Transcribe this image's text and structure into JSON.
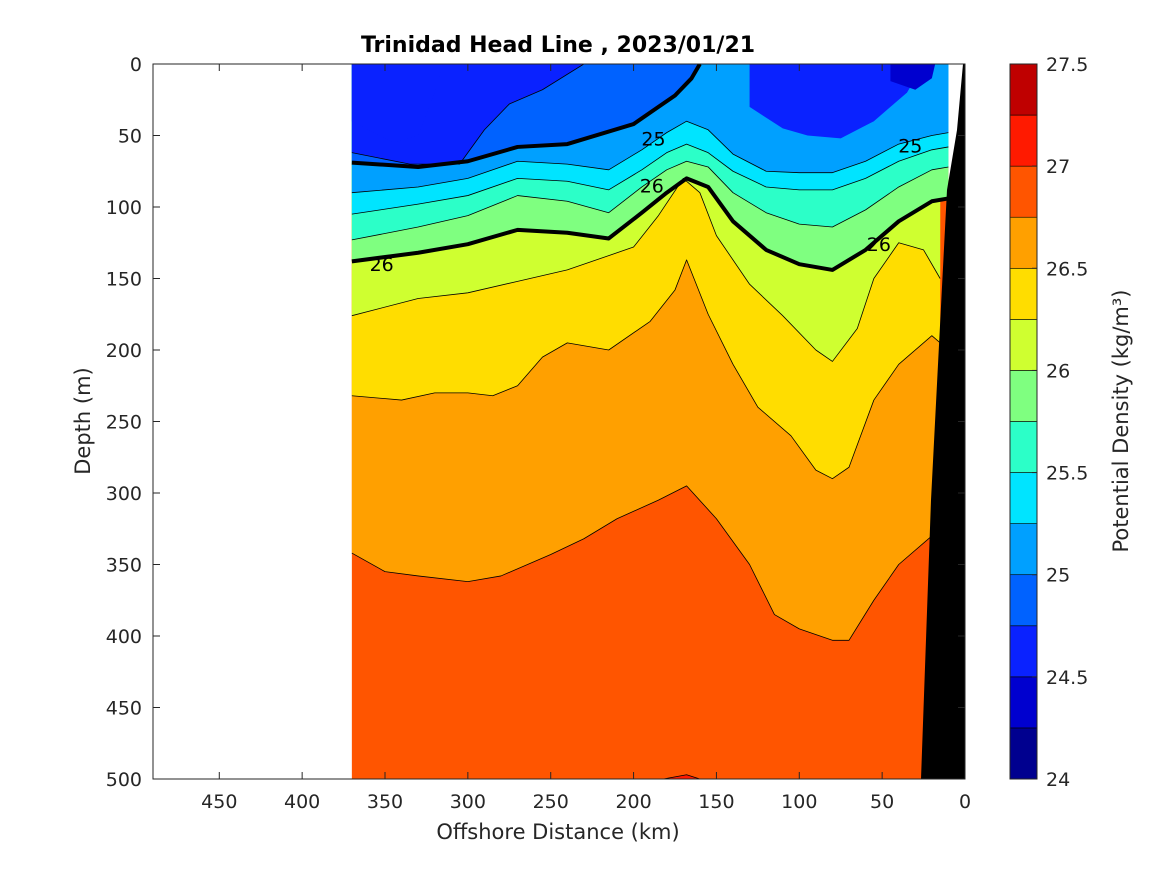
{
  "chart_data": {
    "type": "heatmap",
    "subtype": "filled-contour",
    "title": "Trinidad Head Line , 2023/01/21",
    "xlabel": "Offshore Distance (km)",
    "ylabel": "Depth (m)",
    "colorbar_label": "Potential Density (kg/m³)",
    "xlim": [
      490,
      0
    ],
    "ylim": [
      500,
      0
    ],
    "x_reversed": true,
    "y_reversed": true,
    "x_ticks": [
      450,
      400,
      350,
      300,
      250,
      200,
      150,
      100,
      50,
      0
    ],
    "y_ticks": [
      0,
      50,
      100,
      150,
      200,
      250,
      300,
      350,
      400,
      450,
      500
    ],
    "colorbar_ticks": [
      24,
      24.5,
      25,
      25.5,
      26,
      26.5,
      27,
      27.5
    ],
    "colorbar_range": [
      24,
      27.5
    ],
    "contour_step": 0.25,
    "colormap": [
      "#00008f",
      "#0000cf",
      "#0a22ff",
      "#0062ff",
      "#00a0ff",
      "#00e4ff",
      "#2cffc8",
      "#7fff80",
      "#cfff30",
      "#ffdd00",
      "#ffa000",
      "#ff5500",
      "#ff1a00",
      "#bf0000"
    ],
    "bathymetry_color": "#000000",
    "data_extent_km": [
      370,
      10
    ],
    "isopycnals": [
      {
        "level": 24.75,
        "points": [
          [
            370,
            62
          ],
          [
            335,
            70
          ],
          [
            305,
            70
          ],
          [
            290,
            46
          ],
          [
            275,
            28
          ],
          [
            255,
            18
          ],
          [
            230,
            0
          ]
        ]
      },
      {
        "level": 25,
        "points": [
          [
            370,
            69
          ],
          [
            330,
            72
          ],
          [
            300,
            68
          ],
          [
            270,
            58
          ],
          [
            240,
            56
          ],
          [
            200,
            42
          ],
          [
            185,
            30
          ],
          [
            175,
            22
          ],
          [
            165,
            10
          ],
          [
            160,
            0
          ]
        ]
      },
      {
        "level": 25.25,
        "points": [
          [
            370,
            90
          ],
          [
            330,
            86
          ],
          [
            300,
            80
          ],
          [
            270,
            68
          ],
          [
            240,
            70
          ],
          [
            215,
            74
          ],
          [
            195,
            60
          ],
          [
            180,
            48
          ],
          [
            168,
            40
          ],
          [
            155,
            46
          ],
          [
            140,
            63
          ],
          [
            120,
            75
          ],
          [
            100,
            76
          ],
          [
            80,
            76
          ],
          [
            60,
            68
          ],
          [
            40,
            56
          ],
          [
            20,
            50
          ],
          [
            10,
            48
          ]
        ]
      },
      {
        "level": 25.5,
        "points": [
          [
            370,
            105
          ],
          [
            330,
            98
          ],
          [
            300,
            92
          ],
          [
            270,
            80
          ],
          [
            240,
            82
          ],
          [
            215,
            88
          ],
          [
            195,
            74
          ],
          [
            180,
            62
          ],
          [
            168,
            56
          ],
          [
            155,
            62
          ],
          [
            140,
            75
          ],
          [
            120,
            86
          ],
          [
            100,
            88
          ],
          [
            80,
            88
          ],
          [
            60,
            80
          ],
          [
            40,
            68
          ],
          [
            20,
            60
          ],
          [
            10,
            58
          ]
        ]
      },
      {
        "level": 25.75,
        "points": [
          [
            370,
            123
          ],
          [
            330,
            114
          ],
          [
            300,
            106
          ],
          [
            270,
            92
          ],
          [
            240,
            96
          ],
          [
            215,
            104
          ],
          [
            195,
            86
          ],
          [
            180,
            74
          ],
          [
            168,
            68
          ],
          [
            155,
            72
          ],
          [
            140,
            90
          ],
          [
            120,
            104
          ],
          [
            100,
            112
          ],
          [
            80,
            114
          ],
          [
            60,
            102
          ],
          [
            40,
            86
          ],
          [
            20,
            74
          ],
          [
            10,
            72
          ]
        ]
      },
      {
        "level": 26,
        "points": [
          [
            370,
            138
          ],
          [
            330,
            132
          ],
          [
            300,
            126
          ],
          [
            270,
            116
          ],
          [
            240,
            118
          ],
          [
            215,
            122
          ],
          [
            195,
            104
          ],
          [
            180,
            90
          ],
          [
            168,
            80
          ],
          [
            155,
            86
          ],
          [
            140,
            110
          ],
          [
            120,
            130
          ],
          [
            100,
            140
          ],
          [
            80,
            144
          ],
          [
            60,
            130
          ],
          [
            40,
            110
          ],
          [
            20,
            96
          ],
          [
            10,
            94
          ]
        ]
      },
      {
        "level": 26.25,
        "points": [
          [
            370,
            176
          ],
          [
            330,
            164
          ],
          [
            300,
            160
          ],
          [
            270,
            152
          ],
          [
            240,
            144
          ],
          [
            215,
            134
          ],
          [
            200,
            128
          ],
          [
            185,
            106
          ],
          [
            170,
            80
          ],
          [
            160,
            90
          ],
          [
            150,
            120
          ],
          [
            130,
            154
          ],
          [
            110,
            176
          ],
          [
            90,
            200
          ],
          [
            80,
            208
          ],
          [
            65,
            185
          ],
          [
            55,
            150
          ],
          [
            40,
            125
          ],
          [
            25,
            130
          ],
          [
            15,
            150
          ]
        ]
      },
      {
        "level": 26.5,
        "points": [
          [
            370,
            232
          ],
          [
            340,
            235
          ],
          [
            320,
            230
          ],
          [
            300,
            230
          ],
          [
            285,
            232
          ],
          [
            270,
            225
          ],
          [
            255,
            205
          ],
          [
            240,
            195
          ],
          [
            215,
            200
          ],
          [
            190,
            180
          ],
          [
            175,
            158
          ],
          [
            168,
            137
          ],
          [
            155,
            175
          ],
          [
            140,
            210
          ],
          [
            125,
            240
          ],
          [
            105,
            260
          ],
          [
            90,
            284
          ],
          [
            80,
            290
          ],
          [
            70,
            282
          ],
          [
            55,
            235
          ],
          [
            40,
            210
          ],
          [
            20,
            190
          ],
          [
            15,
            195
          ]
        ]
      },
      {
        "level": 26.75,
        "points": [
          [
            370,
            342
          ],
          [
            350,
            355
          ],
          [
            330,
            358
          ],
          [
            300,
            362
          ],
          [
            280,
            358
          ],
          [
            250,
            343
          ],
          [
            230,
            332
          ],
          [
            210,
            318
          ],
          [
            185,
            305
          ],
          [
            168,
            295
          ],
          [
            150,
            318
          ],
          [
            130,
            350
          ],
          [
            115,
            385
          ],
          [
            100,
            395
          ],
          [
            80,
            403
          ],
          [
            70,
            403
          ],
          [
            55,
            375
          ],
          [
            40,
            350
          ],
          [
            20,
            330
          ],
          [
            15,
            340
          ]
        ]
      },
      {
        "level": 27,
        "points": [
          [
            182,
            500
          ],
          [
            168,
            497
          ],
          [
            160,
            500
          ]
        ]
      }
    ],
    "labeled_isopycnals": [
      25,
      26
    ],
    "contour_labels": [
      {
        "text": "25",
        "x": 188,
        "depth": 52
      },
      {
        "text": "25",
        "x": 33,
        "depth": 57
      },
      {
        "text": "26",
        "x": 189,
        "depth": 85
      },
      {
        "text": "26",
        "x": 352,
        "depth": 140
      },
      {
        "text": "26",
        "x": 52,
        "depth": 126
      }
    ]
  }
}
